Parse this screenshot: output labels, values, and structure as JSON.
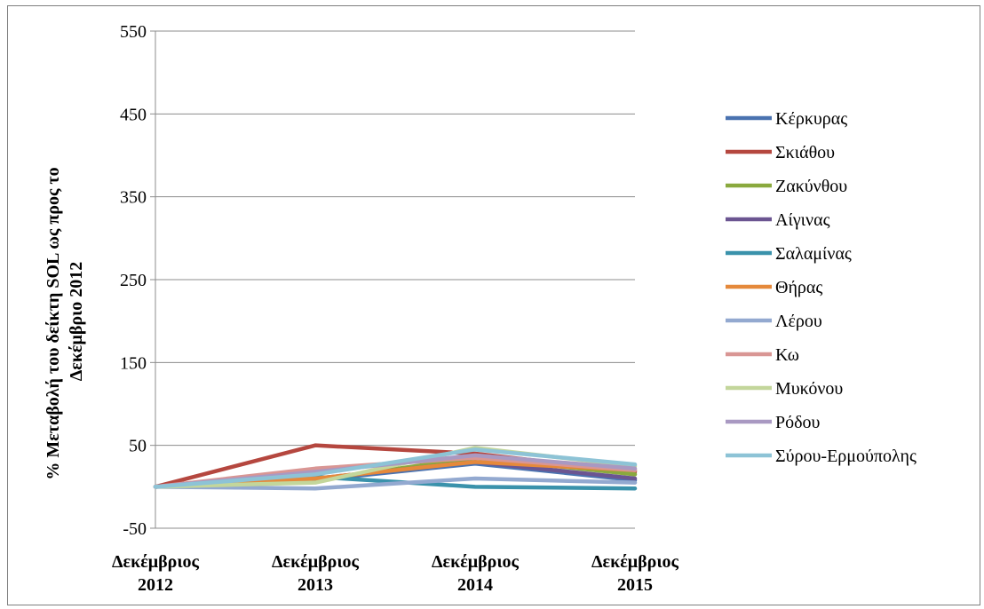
{
  "chart_data": {
    "type": "line",
    "title": "",
    "xlabel": "",
    "ylabel_lines": [
      "% Μεταβολή του δείκτη SOL ως προς το",
      "Δεκέμβριο 2012"
    ],
    "categories": [
      [
        "Δεκέμβριος",
        "2012"
      ],
      [
        "Δεκέμβριος",
        "2013"
      ],
      [
        "Δεκέμβριος",
        "2014"
      ],
      [
        "Δεκέμβριος",
        "2015"
      ]
    ],
    "ylim": [
      -50,
      550
    ],
    "yticks": [
      -50,
      50,
      150,
      250,
      350,
      450,
      550
    ],
    "grid": true,
    "legend_position": "right",
    "series": [
      {
        "name": "Κέρκυρας",
        "color": "#4a72b0",
        "values": [
          0,
          8,
          28,
          8
        ]
      },
      {
        "name": "Σκιάθου",
        "color": "#b5473f",
        "values": [
          0,
          50,
          40,
          18
        ]
      },
      {
        "name": "Ζακύνθου",
        "color": "#8aa93e",
        "values": [
          0,
          8,
          35,
          15
        ]
      },
      {
        "name": "Αίγινας",
        "color": "#6b5591",
        "values": [
          0,
          10,
          30,
          10
        ]
      },
      {
        "name": "Σαλαμίνας",
        "color": "#3a92ab",
        "values": [
          0,
          12,
          0,
          -2
        ]
      },
      {
        "name": "Θήρας",
        "color": "#e5893b",
        "values": [
          0,
          10,
          30,
          20
        ]
      },
      {
        "name": "Λέρου",
        "color": "#93a9d0",
        "values": [
          0,
          -2,
          10,
          5
        ]
      },
      {
        "name": "Κω",
        "color": "#d99694",
        "values": [
          0,
          22,
          35,
          20
        ]
      },
      {
        "name": "Μυκόνου",
        "color": "#c3d69b",
        "values": [
          0,
          5,
          47,
          25
        ]
      },
      {
        "name": "Ρόδου",
        "color": "#a999c2",
        "values": [
          0,
          18,
          38,
          22
        ]
      },
      {
        "name": "Σύρου-Ερμούπολης",
        "color": "#8dc3d6",
        "values": [
          0,
          15,
          45,
          27
        ]
      }
    ]
  }
}
